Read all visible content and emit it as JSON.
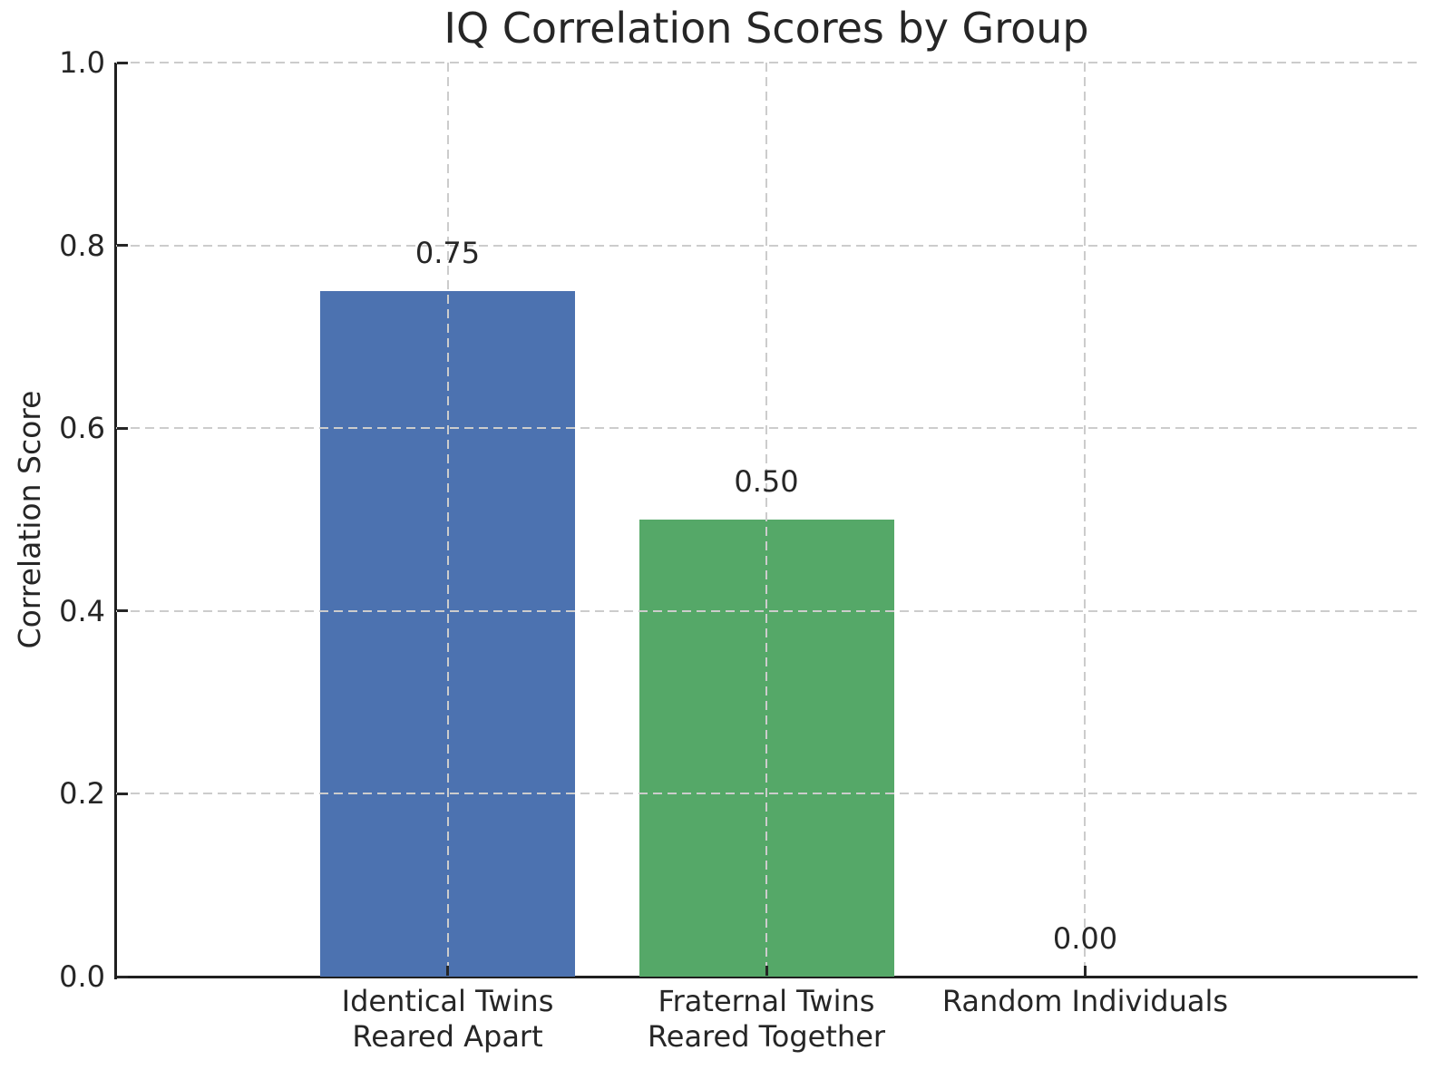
{
  "chart_data": {
    "type": "bar",
    "title": "IQ Correlation Scores by Group",
    "xlabel": "",
    "ylabel": "Correlation Score",
    "categories": [
      "Identical Twins\nReared Apart",
      "Fraternal Twins\nReared Together",
      "Random Individuals"
    ],
    "category_lines": [
      [
        "Identical Twins",
        "Reared Apart"
      ],
      [
        "Fraternal Twins",
        "Reared Together"
      ],
      [
        "Random Individuals"
      ]
    ],
    "values": [
      0.75,
      0.5,
      0.0
    ],
    "value_labels": [
      "0.75",
      "0.50",
      "0.00"
    ],
    "bar_colors": [
      "#4C72B0",
      "#55A868",
      "transparent"
    ],
    "ylim": [
      0.0,
      1.0
    ],
    "yticks": [
      0.0,
      0.2,
      0.4,
      0.6,
      0.8,
      1.0
    ],
    "ytick_labels": [
      "0.0",
      "0.2",
      "0.4",
      "0.6",
      "0.8",
      "1.0"
    ],
    "grid": true,
    "grid_style": "dashed",
    "grid_on_top": true,
    "legend_position": "none"
  },
  "style": {
    "background_color": "#ffffff",
    "grid_color": "#cccccc",
    "spine_color": "#1f1f1f",
    "text_color": "#262626",
    "tick_color": "#262626"
  }
}
